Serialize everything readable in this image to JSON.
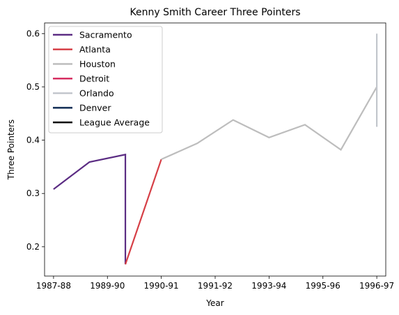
{
  "chart_data": {
    "type": "line",
    "title": "Kenny Smith Career Three Pointers",
    "xlabel": "Year",
    "ylabel": "Three Pointers",
    "x_ticks": [
      "1987-88",
      "1989-90",
      "1990-91",
      "1991-92",
      "1993-94",
      "1995-96",
      "1996-97"
    ],
    "xlim": [
      -0.25,
      9.25
    ],
    "ylim": [
      0.145,
      0.62
    ],
    "y_ticks": [
      0.2,
      0.3,
      0.4,
      0.5,
      0.6
    ],
    "legend_position": "top-left",
    "grid": false,
    "series": [
      {
        "name": "Sacramento",
        "color": "#5b2c83",
        "points": [
          [
            0,
            0.308
          ],
          [
            1,
            0.359
          ],
          [
            2,
            0.373
          ],
          [
            2,
            0.167
          ]
        ]
      },
      {
        "name": "Atlanta",
        "color": "#d63f46",
        "points": [
          [
            2,
            0.167
          ],
          [
            3,
            0.364
          ]
        ]
      },
      {
        "name": "Houston",
        "color": "#bdbdbd",
        "points": [
          [
            3,
            0.364
          ],
          [
            4,
            0.394
          ],
          [
            5,
            0.438
          ],
          [
            6,
            0.405
          ],
          [
            7,
            0.429
          ],
          [
            8,
            0.382
          ],
          [
            9,
            0.5
          ]
        ]
      },
      {
        "name": "Detroit",
        "color": "#d62a5e",
        "points": []
      },
      {
        "name": "Orlando",
        "color": "#c2c6cc",
        "points": [
          [
            9,
            0.6
          ],
          [
            9,
            0.425
          ]
        ]
      },
      {
        "name": "Denver",
        "color": "#0e2a52",
        "points": []
      },
      {
        "name": "League Average",
        "color": "#000000",
        "points": []
      }
    ]
  }
}
